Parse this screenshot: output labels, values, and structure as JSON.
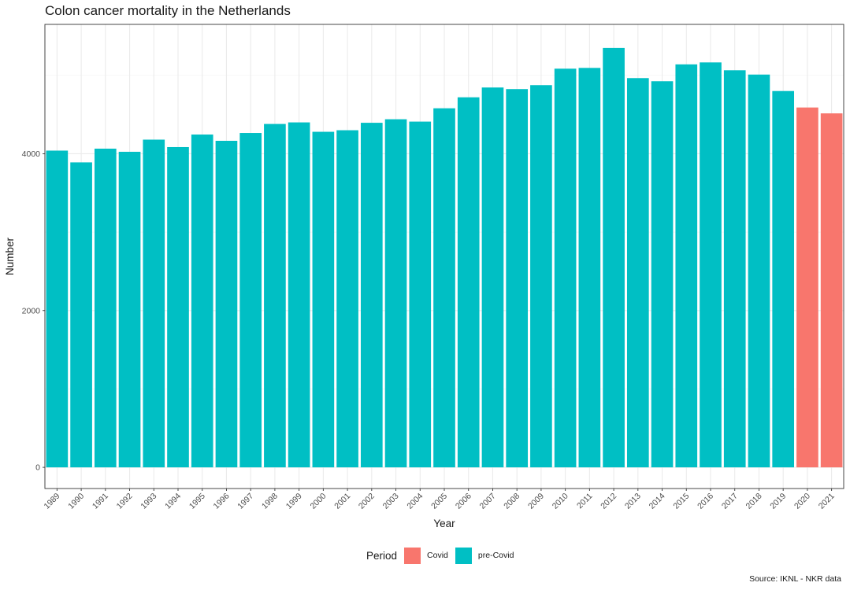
{
  "chart_data": {
    "type": "bar",
    "title": "Colon cancer mortality in the Netherlands",
    "xlabel": "Year",
    "ylabel": "Number",
    "caption": "Source: IKNL - NKR data",
    "ylim": [
      -270,
      5650
    ],
    "yticks": [
      0,
      2000,
      4000
    ],
    "grid": true,
    "legend_position": "bottom",
    "legend": {
      "title": "Period",
      "entries": [
        {
          "label": "Covid",
          "color": "#F8766D"
        },
        {
          "label": "pre-Covid",
          "color": "#00BFC4"
        }
      ]
    },
    "categories": [
      "1989",
      "1990",
      "1991",
      "1992",
      "1993",
      "1994",
      "1995",
      "1996",
      "1997",
      "1998",
      "1999",
      "2000",
      "2001",
      "2002",
      "2003",
      "2004",
      "2005",
      "2006",
      "2007",
      "2008",
      "2009",
      "2010",
      "2011",
      "2012",
      "2013",
      "2014",
      "2015",
      "2016",
      "2017",
      "2018",
      "2019",
      "2020",
      "2021"
    ],
    "values": [
      4040,
      3890,
      4065,
      4025,
      4180,
      4085,
      4245,
      4165,
      4265,
      4380,
      4400,
      4280,
      4300,
      4395,
      4440,
      4410,
      4580,
      4720,
      4845,
      4825,
      4875,
      5085,
      5095,
      5350,
      4965,
      4925,
      5140,
      5165,
      5065,
      5010,
      4800,
      4590,
      4515
    ],
    "periods": [
      "pre-Covid",
      "pre-Covid",
      "pre-Covid",
      "pre-Covid",
      "pre-Covid",
      "pre-Covid",
      "pre-Covid",
      "pre-Covid",
      "pre-Covid",
      "pre-Covid",
      "pre-Covid",
      "pre-Covid",
      "pre-Covid",
      "pre-Covid",
      "pre-Covid",
      "pre-Covid",
      "pre-Covid",
      "pre-Covid",
      "pre-Covid",
      "pre-Covid",
      "pre-Covid",
      "pre-Covid",
      "pre-Covid",
      "pre-Covid",
      "pre-Covid",
      "pre-Covid",
      "pre-Covid",
      "pre-Covid",
      "pre-Covid",
      "pre-Covid",
      "pre-Covid",
      "Covid",
      "Covid"
    ]
  }
}
